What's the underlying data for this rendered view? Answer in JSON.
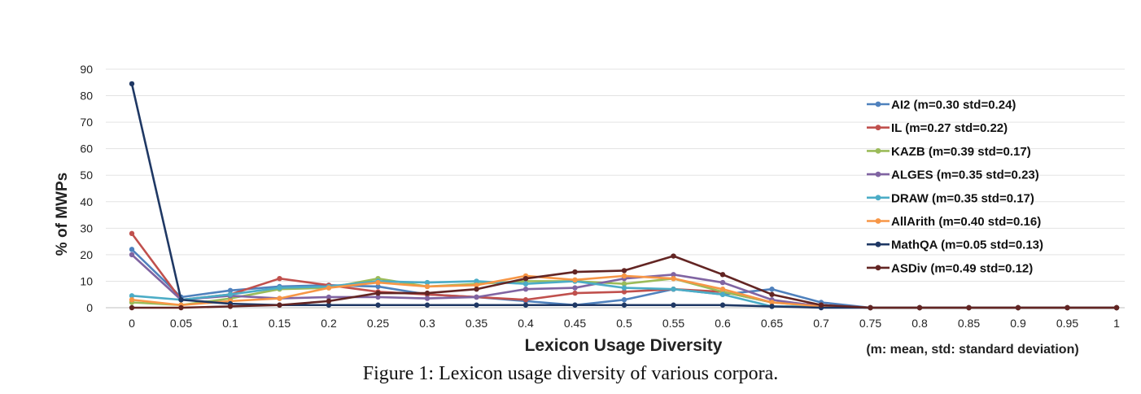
{
  "figure": {
    "caption": "Figure 1:  Lexicon usage diversity of various corpora."
  },
  "chart_data": {
    "type": "line",
    "title": "",
    "xlabel": "Lexicon Usage Diversity",
    "ylabel": "% of MWPs",
    "note": "(m: mean, std: standard deviation)",
    "x": [
      "0",
      "0.05",
      "0.1",
      "0.15",
      "0.2",
      "0.25",
      "0.3",
      "0.35",
      "0.4",
      "0.45",
      "0.5",
      "0.55",
      "0.6",
      "0.65",
      "0.7",
      "0.75",
      "0.8",
      "0.85",
      "0.9",
      "0.95",
      "1"
    ],
    "yticks": [
      "0",
      "10",
      "20",
      "30",
      "40",
      "50",
      "60",
      "70",
      "80",
      "90"
    ],
    "ylim": [
      0,
      90
    ],
    "grid": true,
    "legend_position": "right",
    "series": [
      {
        "name": "AI2 (m=0.30 std=0.24)",
        "color": "#4f81bd",
        "values": [
          22,
          4,
          6.5,
          8,
          8.5,
          8,
          5,
          4,
          2.5,
          1,
          3,
          7,
          5,
          7,
          2,
          0,
          0,
          0,
          0,
          0,
          0
        ]
      },
      {
        "name": "IL (m=0.27 std=0.22)",
        "color": "#c0504d",
        "values": [
          28,
          3,
          5,
          11,
          8.5,
          6,
          5,
          4,
          3,
          5.5,
          6,
          7,
          6,
          2,
          1,
          0,
          0,
          0,
          0,
          0,
          0
        ]
      },
      {
        "name": "KAZB (m=0.39 std=0.17)",
        "color": "#9bbb59",
        "values": [
          2,
          1,
          3.5,
          7,
          7.5,
          11,
          8,
          9,
          10,
          10,
          9,
          11,
          6,
          2,
          0.5,
          0,
          0,
          0,
          0,
          0,
          0
        ]
      },
      {
        "name": "ALGES (m=0.35 std=0.23)",
        "color": "#8064a2",
        "values": [
          20,
          3,
          4.5,
          3.5,
          4,
          4,
          3.5,
          4,
          7,
          7.5,
          11,
          12.5,
          9.5,
          3,
          0.5,
          0,
          0,
          0,
          0,
          0,
          0
        ]
      },
      {
        "name": "DRAW (m=0.35 std=0.17)",
        "color": "#4bacc6",
        "values": [
          4.5,
          3,
          5,
          7.5,
          8,
          10,
          9.5,
          10,
          9,
          10,
          7.5,
          7,
          5,
          0.5,
          0.5,
          0,
          0,
          0,
          0,
          0,
          0
        ]
      },
      {
        "name": "AllArith (m=0.40 std=0.16)",
        "color": "#f79646",
        "values": [
          3,
          1,
          2.5,
          3.5,
          7.5,
          9.5,
          8,
          8.5,
          12,
          10.5,
          12,
          11,
          7,
          2,
          0.5,
          0,
          0,
          0,
          0,
          0,
          0
        ]
      },
      {
        "name": "MathQA (m=0.05 std=0.13)",
        "color": "#1f3864",
        "values": [
          84.5,
          3,
          1.5,
          1,
          1,
          1,
          1,
          1,
          1,
          1,
          1,
          1,
          1,
          0.5,
          0,
          0,
          0,
          0,
          0,
          0,
          0
        ]
      },
      {
        "name": "ASDiv (m=0.49 std=0.12)",
        "color": "#632523",
        "values": [
          0,
          0,
          0.5,
          1,
          2.5,
          5.5,
          5.5,
          7,
          11,
          13.5,
          14,
          19.5,
          12.5,
          5,
          1,
          0,
          0,
          0,
          0,
          0,
          0
        ]
      }
    ]
  }
}
